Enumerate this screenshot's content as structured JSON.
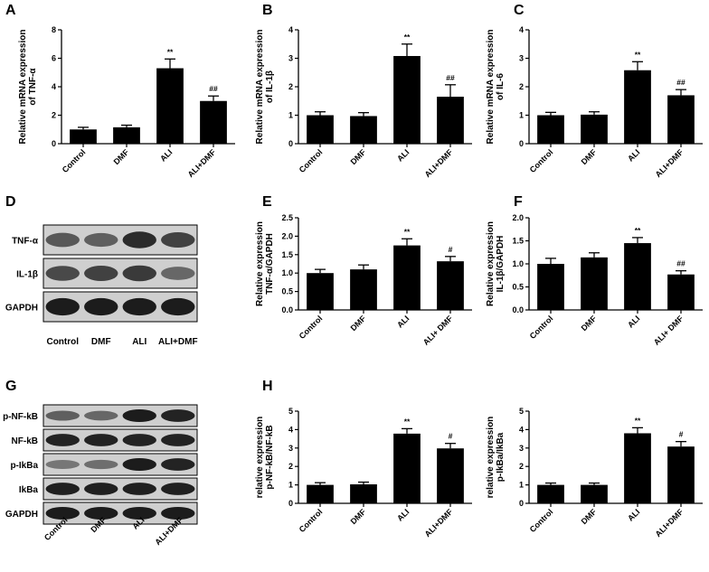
{
  "panel_labels": [
    "A",
    "B",
    "C",
    "D",
    "E",
    "F",
    "G",
    "H"
  ],
  "chart_data": [
    {
      "type": "bar",
      "panel": "A",
      "ylabel": [
        "Relative mRNA expression",
        "of TNF-α"
      ],
      "categories": [
        "Control",
        "DMF",
        "ALI",
        "ALI+DMF"
      ],
      "values": [
        1.0,
        1.15,
        5.3,
        3.0
      ],
      "errors": [
        0.15,
        0.15,
        0.65,
        0.35
      ],
      "significance": [
        "",
        "",
        "**",
        "##"
      ],
      "ylim": [
        0,
        8
      ],
      "yticks": [
        "0",
        "2",
        "4",
        "6",
        "8"
      ]
    },
    {
      "type": "bar",
      "panel": "B",
      "ylabel": [
        "Relative mRNA expression",
        "of IL-1β"
      ],
      "categories": [
        "Control",
        "DMF",
        "ALI",
        "ALI+DMF"
      ],
      "values": [
        1.0,
        0.97,
        3.08,
        1.65
      ],
      "errors": [
        0.12,
        0.12,
        0.42,
        0.42
      ],
      "significance": [
        "",
        "",
        "**",
        "##"
      ],
      "ylim": [
        0,
        4
      ],
      "yticks": [
        "0",
        "1",
        "2",
        "3",
        "4"
      ]
    },
    {
      "type": "bar",
      "panel": "C",
      "ylabel": [
        "Relative mRNA expression",
        "of IL-6"
      ],
      "categories": [
        "Control",
        "DMF",
        "ALI",
        "ALI+DMF"
      ],
      "values": [
        1.0,
        1.02,
        2.58,
        1.7
      ],
      "errors": [
        0.1,
        0.1,
        0.3,
        0.2
      ],
      "significance": [
        "",
        "",
        "**",
        "##"
      ],
      "ylim": [
        0,
        4
      ],
      "yticks": [
        "0",
        "1",
        "2",
        "3",
        "4"
      ]
    },
    {
      "type": "bar",
      "panel": "E",
      "ylabel": [
        "Relative expression",
        "TNF-α/GAPDH"
      ],
      "categories": [
        "Control",
        "DMF",
        "ALI",
        "ALI+ DMF"
      ],
      "values": [
        1.0,
        1.1,
        1.75,
        1.32
      ],
      "errors": [
        0.1,
        0.12,
        0.18,
        0.13
      ],
      "significance": [
        "",
        "",
        "**",
        "#"
      ],
      "ylim": [
        0,
        2.5
      ],
      "yticks": [
        "0.0",
        "0.5",
        "1.0",
        "1.5",
        "2.0",
        "2.5"
      ]
    },
    {
      "type": "bar",
      "panel": "F",
      "ylabel": [
        "Relative expression",
        "IL-1β/GAPDH"
      ],
      "categories": [
        "Control",
        "DMF",
        "ALI",
        "ALI+ DMF"
      ],
      "values": [
        1.0,
        1.14,
        1.45,
        0.77
      ],
      "errors": [
        0.12,
        0.1,
        0.12,
        0.08
      ],
      "significance": [
        "",
        "",
        "**",
        "##"
      ],
      "ylim": [
        0,
        2.0
      ],
      "yticks": [
        "0.0",
        "0.5",
        "1.0",
        "1.5",
        "2.0"
      ]
    },
    {
      "type": "bar",
      "panel": "H",
      "ylabel": [
        "relative expression",
        "p-NF-kB/NF-kB"
      ],
      "categories": [
        "Control",
        "DMF",
        "ALI",
        "ALI+DMF"
      ],
      "values": [
        1.0,
        1.03,
        3.78,
        2.98
      ],
      "errors": [
        0.12,
        0.12,
        0.27,
        0.27
      ],
      "significance": [
        "",
        "",
        "**",
        "#"
      ],
      "ylim": [
        0,
        5
      ],
      "yticks": [
        "0",
        "1",
        "2",
        "3",
        "4",
        "5"
      ]
    },
    {
      "type": "bar",
      "panel": "",
      "ylabel": [
        "relative expression",
        "p-IkBa/IkBa"
      ],
      "categories": [
        "Control",
        "DMF",
        "ALI",
        "ALI+DMF"
      ],
      "values": [
        1.0,
        1.0,
        3.8,
        3.08
      ],
      "errors": [
        0.1,
        0.1,
        0.3,
        0.27
      ],
      "significance": [
        "",
        "",
        "**",
        "#"
      ],
      "ylim": [
        0,
        5
      ],
      "yticks": [
        "0",
        "1",
        "2",
        "3",
        "4",
        "5"
      ]
    }
  ],
  "blots": [
    {
      "panel": "D",
      "rows": [
        {
          "label": "TNF-α",
          "intensity": [
            0.55,
            0.5,
            0.85,
            0.7
          ]
        },
        {
          "label": "IL-1β",
          "intensity": [
            0.65,
            0.7,
            0.75,
            0.45
          ]
        },
        {
          "label": "GAPDH",
          "intensity": [
            0.95,
            0.95,
            0.95,
            0.95
          ]
        }
      ],
      "lanes": [
        "Control",
        "DMF",
        "ALI",
        "ALI+DMF"
      ]
    },
    {
      "panel": "G",
      "rows": [
        {
          "label": "p-NF-kB",
          "intensity": [
            0.5,
            0.45,
            0.95,
            0.9
          ]
        },
        {
          "label": "NF-kB",
          "intensity": [
            0.9,
            0.9,
            0.9,
            0.9
          ]
        },
        {
          "label": "p-IkBa",
          "intensity": [
            0.35,
            0.4,
            0.95,
            0.9
          ]
        },
        {
          "label": "IkBa",
          "intensity": [
            0.92,
            0.92,
            0.92,
            0.92
          ]
        },
        {
          "label": "GAPDH",
          "intensity": [
            0.95,
            0.95,
            0.95,
            0.95
          ]
        }
      ],
      "lanes": [
        "Control",
        "DMF",
        "ALI",
        "ALI+DMF"
      ]
    }
  ]
}
